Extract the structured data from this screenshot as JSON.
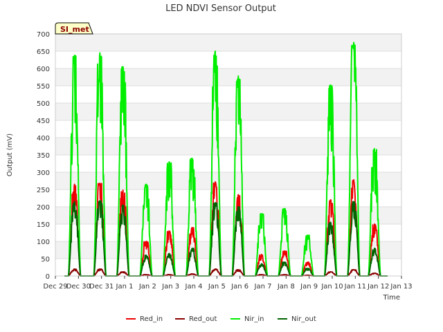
{
  "chart_data": {
    "type": "line",
    "title": "LED NDVI Sensor Output",
    "xlabel": "Time",
    "ylabel": "Output (mV)",
    "site_label": "SI_met",
    "ylim": [
      0,
      700
    ],
    "yticks": [
      0,
      50,
      100,
      150,
      200,
      250,
      300,
      350,
      400,
      450,
      500,
      550,
      600,
      650,
      700
    ],
    "xlim": [
      0,
      15
    ],
    "xticks": [
      {
        "x": 0,
        "label": "Dec 29"
      },
      {
        "x": 1,
        "label": "Dec 30"
      },
      {
        "x": 2,
        "label": "Dec 31"
      },
      {
        "x": 3,
        "label": "Jan 1"
      },
      {
        "x": 4,
        "label": "Jan 2"
      },
      {
        "x": 5,
        "label": "Jan 3"
      },
      {
        "x": 6,
        "label": "Jan 4"
      },
      {
        "x": 7,
        "label": "Jan 5"
      },
      {
        "x": 8,
        "label": "Jan 6"
      },
      {
        "x": 9,
        "label": "Jan 7"
      },
      {
        "x": 10,
        "label": "Jan 8"
      },
      {
        "x": 11,
        "label": "Jan 9"
      },
      {
        "x": 12,
        "label": "Jan 10"
      },
      {
        "x": 13,
        "label": "Jan 11"
      },
      {
        "x": 14,
        "label": "Jan 12"
      },
      {
        "x": 15,
        "label": "Jan 13"
      }
    ],
    "grid": true,
    "legend_position": "bottom",
    "series": [
      {
        "name": "Red_in",
        "color": "#ee0000",
        "peaks": [
          {
            "day": 0.85,
            "value": 265
          },
          {
            "day": 1.95,
            "value": 268
          },
          {
            "day": 2.95,
            "value": 248
          },
          {
            "day": 3.95,
            "value": 100
          },
          {
            "day": 4.95,
            "value": 130
          },
          {
            "day": 5.95,
            "value": 140
          },
          {
            "day": 6.95,
            "value": 272
          },
          {
            "day": 7.95,
            "value": 235
          },
          {
            "day": 8.95,
            "value": 62
          },
          {
            "day": 9.95,
            "value": 72
          },
          {
            "day": 10.95,
            "value": 40
          },
          {
            "day": 11.95,
            "value": 220
          },
          {
            "day": 12.95,
            "value": 278
          },
          {
            "day": 13.85,
            "value": 150
          }
        ]
      },
      {
        "name": "Red_out",
        "color": "#8b0000",
        "peaks": [
          {
            "day": 0.85,
            "value": 20
          },
          {
            "day": 1.95,
            "value": 20
          },
          {
            "day": 2.95,
            "value": 12
          },
          {
            "day": 3.95,
            "value": 4
          },
          {
            "day": 4.95,
            "value": 4
          },
          {
            "day": 5.95,
            "value": 6
          },
          {
            "day": 6.95,
            "value": 20
          },
          {
            "day": 7.95,
            "value": 18
          },
          {
            "day": 8.95,
            "value": 4
          },
          {
            "day": 9.95,
            "value": 4
          },
          {
            "day": 10.95,
            "value": 2
          },
          {
            "day": 11.95,
            "value": 12
          },
          {
            "day": 12.95,
            "value": 18
          },
          {
            "day": 13.85,
            "value": 8
          }
        ]
      },
      {
        "name": "Nir_in",
        "color": "#00ee00",
        "peaks": [
          {
            "day": 0.85,
            "value": 638
          },
          {
            "day": 1.95,
            "value": 645
          },
          {
            "day": 2.95,
            "value": 605
          },
          {
            "day": 3.95,
            "value": 265
          },
          {
            "day": 4.95,
            "value": 330
          },
          {
            "day": 5.95,
            "value": 340
          },
          {
            "day": 6.95,
            "value": 650
          },
          {
            "day": 7.95,
            "value": 578
          },
          {
            "day": 8.95,
            "value": 180
          },
          {
            "day": 9.95,
            "value": 195
          },
          {
            "day": 10.95,
            "value": 118
          },
          {
            "day": 11.95,
            "value": 552
          },
          {
            "day": 12.95,
            "value": 675
          },
          {
            "day": 13.85,
            "value": 368
          }
        ]
      },
      {
        "name": "Nir_out",
        "color": "#006400",
        "peaks": [
          {
            "day": 0.85,
            "value": 215
          },
          {
            "day": 1.95,
            "value": 218
          },
          {
            "day": 2.95,
            "value": 205
          },
          {
            "day": 3.95,
            "value": 60
          },
          {
            "day": 4.95,
            "value": 65
          },
          {
            "day": 5.95,
            "value": 80
          },
          {
            "day": 6.95,
            "value": 212
          },
          {
            "day": 7.95,
            "value": 200
          },
          {
            "day": 8.95,
            "value": 35
          },
          {
            "day": 9.95,
            "value": 40
          },
          {
            "day": 10.95,
            "value": 22
          },
          {
            "day": 11.95,
            "value": 155
          },
          {
            "day": 12.95,
            "value": 215
          },
          {
            "day": 13.85,
            "value": 80
          }
        ]
      }
    ]
  }
}
